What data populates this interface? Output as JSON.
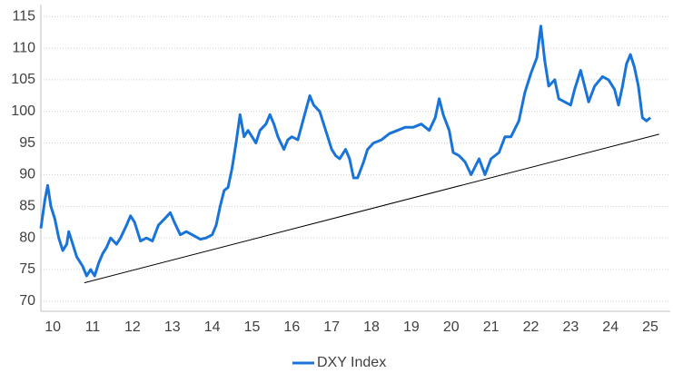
{
  "chart_data": {
    "type": "line",
    "xlim": [
      2010.2,
      2026.0
    ],
    "ylim": [
      68.4,
      116.9
    ],
    "yticks": [
      70,
      75,
      80,
      85,
      90,
      95,
      100,
      105,
      110,
      115
    ],
    "xticks": [
      {
        "value": 2010.5,
        "label": "10"
      },
      {
        "value": 2011.5,
        "label": "11"
      },
      {
        "value": 2012.5,
        "label": "12"
      },
      {
        "value": 2013.5,
        "label": "13"
      },
      {
        "value": 2014.5,
        "label": "14"
      },
      {
        "value": 2015.5,
        "label": "15"
      },
      {
        "value": 2016.5,
        "label": "16"
      },
      {
        "value": 2017.5,
        "label": "17"
      },
      {
        "value": 2018.5,
        "label": "18"
      },
      {
        "value": 2019.5,
        "label": "19"
      },
      {
        "value": 2020.5,
        "label": "20"
      },
      {
        "value": 2021.5,
        "label": "21"
      },
      {
        "value": 2022.5,
        "label": "22"
      },
      {
        "value": 2023.5,
        "label": "23"
      },
      {
        "value": 2024.5,
        "label": "24"
      },
      {
        "value": 2025.5,
        "label": "25"
      }
    ],
    "grid": true,
    "legend": "bottom",
    "x": [
      2010.2,
      2010.3,
      2010.37,
      2010.45,
      2010.55,
      2010.65,
      2010.75,
      2010.85,
      2010.9,
      2011.0,
      2011.1,
      2011.25,
      2011.35,
      2011.45,
      2011.55,
      2011.65,
      2011.75,
      2011.85,
      2011.95,
      2012.1,
      2012.2,
      2012.35,
      2012.45,
      2012.55,
      2012.7,
      2012.85,
      2013.0,
      2013.15,
      2013.3,
      2013.45,
      2013.55,
      2013.7,
      2013.85,
      2014.0,
      2014.2,
      2014.35,
      2014.5,
      2014.6,
      2014.7,
      2014.8,
      2014.9,
      2015.0,
      2015.1,
      2015.2,
      2015.3,
      2015.4,
      2015.5,
      2015.6,
      2015.7,
      2015.85,
      2015.95,
      2016.05,
      2016.15,
      2016.3,
      2016.4,
      2016.5,
      2016.65,
      2016.8,
      2016.95,
      2017.05,
      2017.2,
      2017.35,
      2017.5,
      2017.6,
      2017.7,
      2017.85,
      2017.95,
      2018.05,
      2018.15,
      2018.3,
      2018.4,
      2018.55,
      2018.75,
      2018.95,
      2019.15,
      2019.35,
      2019.55,
      2019.75,
      2019.95,
      2020.1,
      2020.2,
      2020.3,
      2020.45,
      2020.55,
      2020.7,
      2020.85,
      2021.0,
      2021.2,
      2021.35,
      2021.5,
      2021.7,
      2021.85,
      2022.0,
      2022.2,
      2022.35,
      2022.5,
      2022.65,
      2022.75,
      2022.85,
      2022.95,
      2023.1,
      2023.2,
      2023.35,
      2023.5,
      2023.6,
      2023.75,
      2023.85,
      2023.95,
      2024.1,
      2024.3,
      2024.45,
      2024.6,
      2024.7,
      2024.8,
      2024.9,
      2025.0,
      2025.1,
      2025.2,
      2025.3,
      2025.4,
      2025.5
    ],
    "series": [
      {
        "name": "DXY Index",
        "color": "#1a74d8",
        "values": [
          81.5,
          86,
          88.3,
          85,
          83,
          80,
          78,
          79,
          81,
          79,
          77,
          75.5,
          74,
          75,
          74,
          76,
          77.5,
          78.5,
          80,
          79,
          80,
          82,
          83.5,
          82.5,
          79.5,
          80,
          79.5,
          82,
          83,
          84,
          82.5,
          80.5,
          81,
          80.5,
          79.8,
          80,
          80.5,
          82,
          85,
          87.5,
          88,
          91,
          95,
          99.5,
          96,
          97,
          96,
          95,
          97,
          98,
          99.5,
          98,
          96,
          94,
          95.5,
          96,
          95.5,
          99,
          102.5,
          101,
          100,
          97,
          94,
          93,
          92.5,
          94,
          92.5,
          89.5,
          89.5,
          92,
          94,
          95,
          95.5,
          96.5,
          97,
          97.5,
          97.5,
          98,
          97,
          99,
          102,
          99.5,
          97,
          93.5,
          93,
          92,
          90,
          92.5,
          90,
          92.5,
          93.5,
          96,
          96,
          98.5,
          103,
          106,
          108.5,
          113.5,
          108,
          104,
          105,
          102,
          101.5,
          101,
          103.5,
          106.5,
          104,
          101.5,
          104,
          105.5,
          105,
          103.5,
          101,
          104,
          107.5,
          109,
          107,
          104,
          99,
          98.5,
          99
        ]
      }
    ],
    "trend_line": {
      "x": [
        2011.29,
        2025.72
      ],
      "values": [
        72.9,
        96.4
      ],
      "color": "#000000"
    }
  }
}
